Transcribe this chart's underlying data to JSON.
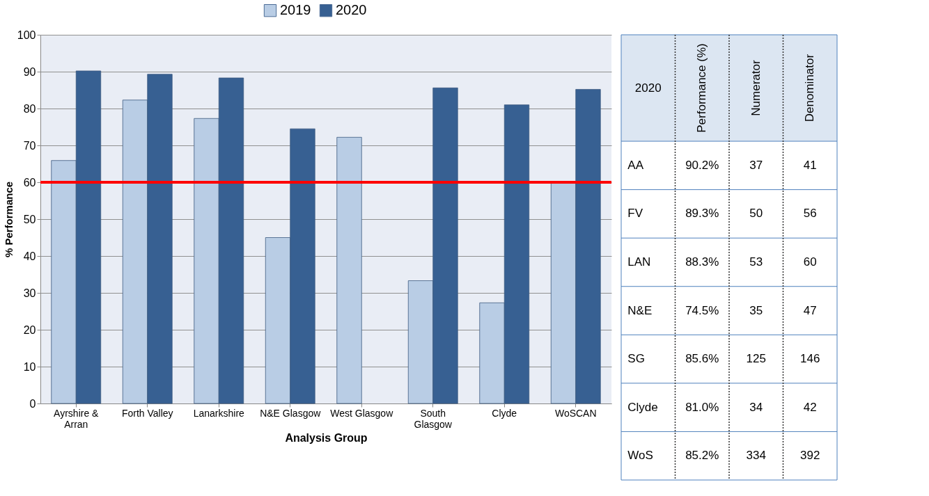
{
  "chart_data": [
    {
      "type": "bar",
      "categories": [
        "Ayrshire & Arran",
        "Forth Valley",
        "Lanarkshire",
        "N&E Glasgow",
        "West Glasgow",
        "South Glasgow",
        "Clyde",
        "WoSCAN"
      ],
      "series": [
        {
          "name": "2019",
          "color": "#b9cde5",
          "values": [
            65.9,
            82.3,
            77.3,
            45.0,
            72.2,
            33.3,
            27.3,
            60.0
          ]
        },
        {
          "name": "2020",
          "color": "#376092",
          "values": [
            90.2,
            89.3,
            88.3,
            74.5,
            null,
            85.6,
            81.0,
            85.2
          ]
        }
      ],
      "xlabel": "Analysis Group",
      "ylabel": "% Performance",
      "ylim": [
        0,
        100
      ],
      "yticks": [
        0,
        10,
        20,
        30,
        40,
        50,
        60,
        70,
        80,
        90,
        100
      ],
      "grid": "y",
      "legend": "top",
      "ref_lines": [
        {
          "axis": "y",
          "value": 60,
          "color": "#ff0000"
        }
      ]
    },
    {
      "type": "other",
      "categories": [
        "2020",
        "Performance (%)",
        "Numerator",
        "Denominator"
      ],
      "y_categories": [
        "AA",
        "FV",
        "LAN",
        "N&E",
        "SG",
        "Clyde",
        "WoS"
      ],
      "cell_labels": [
        [
          "90.2%",
          "37",
          "41"
        ],
        [
          "89.3%",
          "50",
          "56"
        ],
        [
          "88.3%",
          "53",
          "60"
        ],
        [
          "74.5%",
          "35",
          "47"
        ],
        [
          "85.6%",
          "125",
          "146"
        ],
        [
          "81.0%",
          "34",
          "42"
        ],
        [
          "85.2%",
          "334",
          "392"
        ]
      ]
    }
  ]
}
